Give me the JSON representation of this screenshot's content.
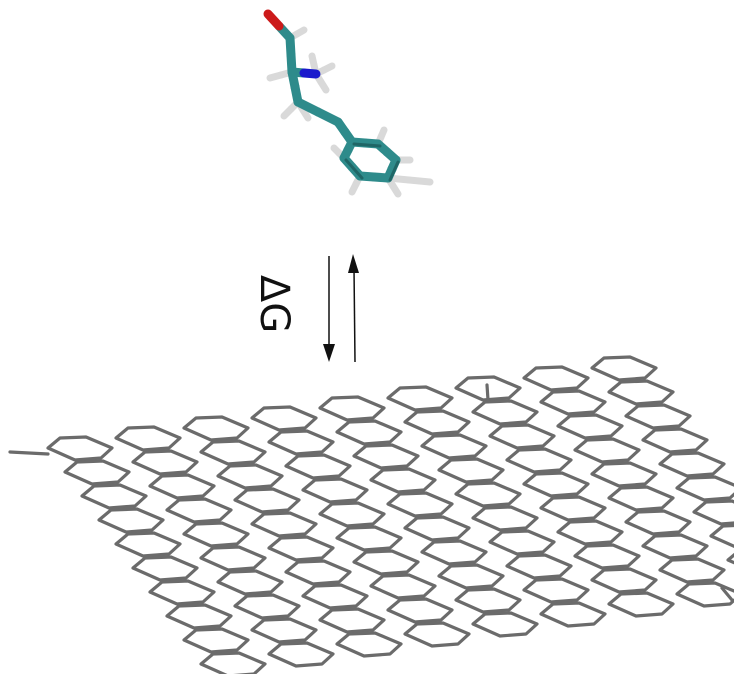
{
  "equilibrium": {
    "label": "ΔG"
  },
  "colors": {
    "background": "#ffffff",
    "graphene_bond": "#6b6b6b",
    "carbon": "#2e8b8b",
    "carbon_dark": "#1f6666",
    "hydrogen": "#d9d9d9",
    "hydrogen_dark": "#9a9a9a",
    "oxygen": "#cc1a1a",
    "nitrogen": "#1a1acc",
    "arrow": "#111111"
  },
  "molecule": {
    "name": ""
  },
  "graphene": {
    "rows": 10,
    "cols": 9
  }
}
